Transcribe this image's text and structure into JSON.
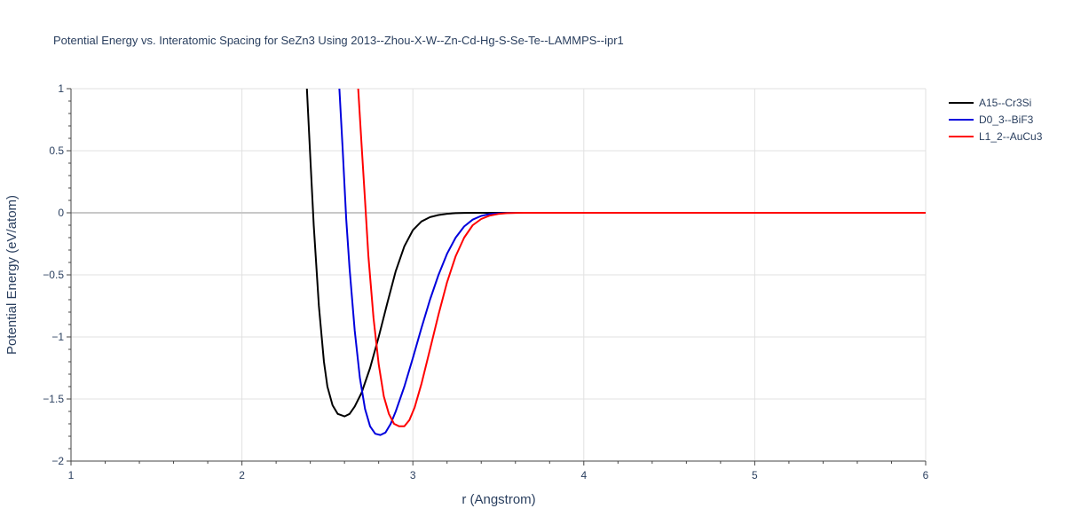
{
  "chart_data": {
    "type": "line",
    "title": "Potential Energy vs. Interatomic Spacing for SeZn3 Using 2013--Zhou-X-W--Zn-Cd-Hg-S-Se-Te--LAMMPS--ipr1",
    "xlabel": "r (Angstrom)",
    "ylabel": "Potential Energy (eV/atom)",
    "xlim": [
      1,
      6
    ],
    "ylim": [
      -2,
      1
    ],
    "x_ticks": [
      1,
      2,
      3,
      4,
      5,
      6
    ],
    "x_tick_labels": [
      "1",
      "2",
      "3",
      "4",
      "5",
      "6"
    ],
    "y_ticks": [
      1,
      0.5,
      0,
      -0.5,
      -1,
      -1.5,
      -2
    ],
    "y_tick_labels": [
      "1",
      "0.5",
      "0",
      "−0.5",
      "−1",
      "−1.5",
      "−2"
    ],
    "grid": true,
    "legend_position": "top-right",
    "series": [
      {
        "name": "A15--Cr3Si",
        "color": "#000000",
        "x": [
          2.38,
          2.4,
          2.42,
          2.45,
          2.48,
          2.5,
          2.53,
          2.56,
          2.6,
          2.63,
          2.66,
          2.7,
          2.75,
          2.8,
          2.85,
          2.9,
          2.95,
          3.0,
          3.05,
          3.1,
          3.15,
          3.2,
          3.25,
          3.3,
          3.4,
          3.5,
          3.6,
          4.0,
          5.0,
          6.0
        ],
        "y": [
          1.0,
          0.45,
          -0.1,
          -0.75,
          -1.2,
          -1.4,
          -1.55,
          -1.62,
          -1.64,
          -1.62,
          -1.56,
          -1.45,
          -1.25,
          -1.0,
          -0.73,
          -0.47,
          -0.27,
          -0.14,
          -0.07,
          -0.035,
          -0.018,
          -0.008,
          -0.003,
          -0.001,
          0.0,
          0.0,
          0.0,
          0.0,
          0.0,
          0.0
        ]
      },
      {
        "name": "D0_3--BiF3",
        "color": "#0000dd",
        "x": [
          2.57,
          2.59,
          2.61,
          2.63,
          2.66,
          2.69,
          2.72,
          2.75,
          2.78,
          2.81,
          2.84,
          2.87,
          2.9,
          2.95,
          3.0,
          3.05,
          3.1,
          3.15,
          3.2,
          3.25,
          3.3,
          3.35,
          3.4,
          3.45,
          3.5,
          3.55,
          3.6,
          4.0,
          5.0,
          6.0
        ],
        "y": [
          1.0,
          0.5,
          -0.05,
          -0.45,
          -0.95,
          -1.33,
          -1.58,
          -1.72,
          -1.78,
          -1.79,
          -1.77,
          -1.7,
          -1.6,
          -1.4,
          -1.17,
          -0.93,
          -0.7,
          -0.5,
          -0.33,
          -0.2,
          -0.11,
          -0.055,
          -0.025,
          -0.01,
          -0.004,
          -0.001,
          0.0,
          0.0,
          0.0,
          0.0
        ]
      },
      {
        "name": "L1_2--AuCu3",
        "color": "#ff0000",
        "x": [
          2.68,
          2.7,
          2.72,
          2.74,
          2.77,
          2.8,
          2.83,
          2.86,
          2.89,
          2.92,
          2.95,
          2.98,
          3.01,
          3.05,
          3.1,
          3.15,
          3.2,
          3.25,
          3.3,
          3.35,
          3.4,
          3.45,
          3.5,
          3.55,
          3.6,
          3.65,
          4.0,
          5.0,
          6.0
        ],
        "y": [
          1.0,
          0.55,
          0.1,
          -0.35,
          -0.85,
          -1.22,
          -1.48,
          -1.62,
          -1.7,
          -1.72,
          -1.72,
          -1.67,
          -1.57,
          -1.38,
          -1.1,
          -0.82,
          -0.56,
          -0.35,
          -0.2,
          -0.1,
          -0.05,
          -0.022,
          -0.009,
          -0.003,
          -0.001,
          0.0,
          0.0,
          0.0,
          0.0
        ]
      }
    ]
  }
}
